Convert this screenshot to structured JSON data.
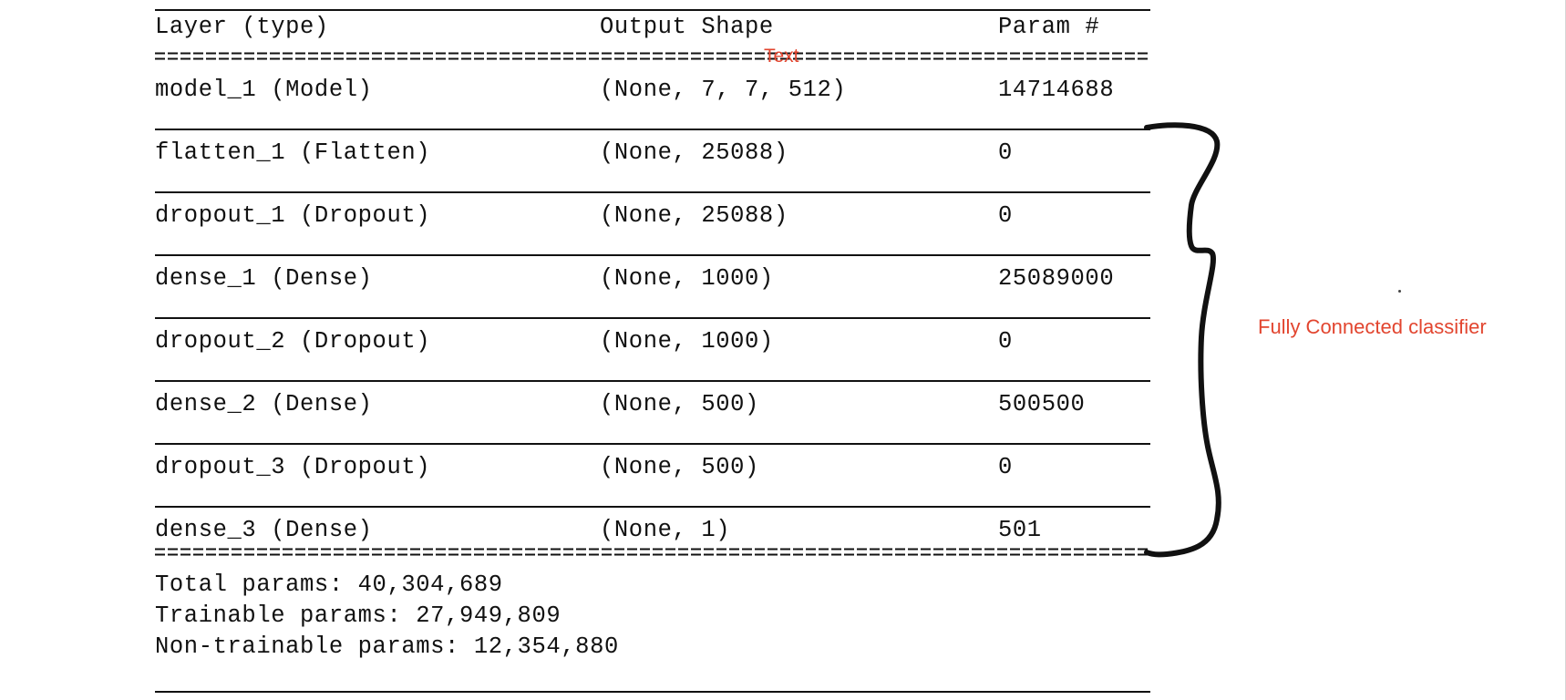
{
  "table": {
    "headers": {
      "layer": "Layer (type)",
      "shape": "Output Shape",
      "params": "Param #"
    },
    "rows": [
      {
        "layer": "model_1 (Model)",
        "shape": "(None, 7, 7, 512)",
        "params": "14714688"
      },
      {
        "layer": "flatten_1 (Flatten)",
        "shape": "(None, 25088)",
        "params": "0"
      },
      {
        "layer": "dropout_1 (Dropout)",
        "shape": "(None, 25088)",
        "params": "0"
      },
      {
        "layer": "dense_1 (Dense)",
        "shape": "(None, 1000)",
        "params": "25089000"
      },
      {
        "layer": "dropout_2 (Dropout)",
        "shape": "(None, 1000)",
        "params": "0"
      },
      {
        "layer": "dense_2 (Dense)",
        "shape": "(None, 500)",
        "params": "500500"
      },
      {
        "layer": "dropout_3 (Dropout)",
        "shape": "(None, 500)",
        "params": "0"
      },
      {
        "layer": "dense_3 (Dense)",
        "shape": "(None, 1)",
        "params": "501"
      }
    ]
  },
  "summary": {
    "total": "Total params: 40,304,689",
    "trainable": "Trainable params: 27,949,809",
    "non_trainable": "Non-trainable params: 12,354,880"
  },
  "annotations": {
    "overlay_text": "Text",
    "brace_label": "Fully Connected classifier",
    "color": "#e2452f"
  }
}
